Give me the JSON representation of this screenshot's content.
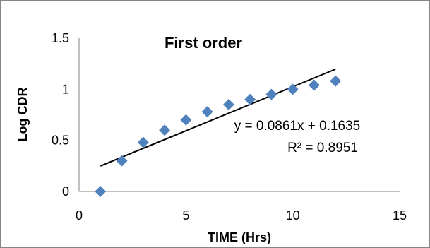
{
  "chart_data": {
    "type": "scatter",
    "title": "First order",
    "xlabel": "TIME (Hrs)",
    "ylabel": "Log CDR",
    "xlim": [
      0,
      15
    ],
    "ylim": [
      0,
      1.5
    ],
    "x_ticks": [
      "0",
      "5",
      "10",
      "15"
    ],
    "y_ticks": [
      "0",
      "0.5",
      "1",
      "1.5"
    ],
    "grid": false,
    "legend": "none",
    "series": [
      {
        "x": [
          1,
          2,
          3,
          4,
          5,
          6,
          7,
          8,
          9,
          10,
          11,
          12
        ],
        "y": [
          0.0,
          0.3,
          0.48,
          0.6,
          0.7,
          0.78,
          0.85,
          0.9,
          0.95,
          1.0,
          1.04,
          1.08
        ]
      }
    ],
    "trendline": {
      "type": "linear",
      "slope": 0.0861,
      "intercept": 0.1635,
      "x_range": [
        1,
        12
      ]
    },
    "annotations": {
      "equation": "y = 0.0861x + 0.1635",
      "r_squared": "R² = 0.8951"
    },
    "colors": {
      "marker": "#4F81BD",
      "trendline": "#000000",
      "axis": "#868686",
      "border": "#868686"
    }
  }
}
